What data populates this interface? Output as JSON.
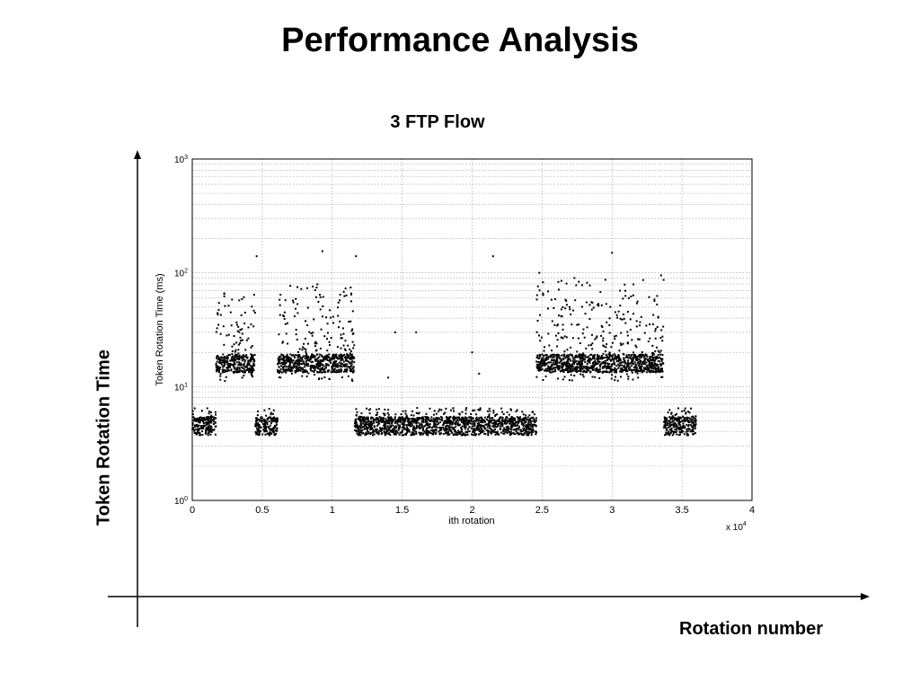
{
  "slide": {
    "title": "Performance Analysis",
    "side_axis_label": "Token Rotation Time",
    "bottom_axis_label": "Rotation number"
  },
  "chart_data": {
    "type": "scatter",
    "title": "3 FTP Flow",
    "xlabel": "ith rotation",
    "ylabel": "Token Rotation Time (ms)",
    "x_multiplier_label": "x 10",
    "x_multiplier_exponent": "4",
    "xlim": [
      0,
      4
    ],
    "ylim": [
      1,
      1000
    ],
    "y_scale": "log",
    "grid": true,
    "x_ticks": [
      "0",
      "0.5",
      "1",
      "1.5",
      "2",
      "2.5",
      "3",
      "3.5",
      "4"
    ],
    "y_ticks": [
      {
        "base": "10",
        "exp": "0",
        "value": 1
      },
      {
        "base": "10",
        "exp": "1",
        "value": 10
      },
      {
        "base": "10",
        "exp": "2",
        "value": 100
      },
      {
        "base": "10",
        "exp": "3",
        "value": 1000
      }
    ],
    "marker_color": "#000000",
    "segments": [
      {
        "x_start": 0.0,
        "x_end": 0.17,
        "base_ms": 4.5,
        "high_ms": 6.5
      },
      {
        "x_start": 0.17,
        "x_end": 0.45,
        "base_ms": 16.0,
        "high_ms": 70
      },
      {
        "x_start": 0.45,
        "x_end": 0.61,
        "base_ms": 4.5,
        "high_ms": 6.5
      },
      {
        "x_start": 0.61,
        "x_end": 1.16,
        "base_ms": 16.0,
        "high_ms": 80
      },
      {
        "x_start": 1.16,
        "x_end": 2.46,
        "base_ms": 4.5,
        "high_ms": 6.5
      },
      {
        "x_start": 2.46,
        "x_end": 3.37,
        "base_ms": 16.0,
        "high_ms": 90
      },
      {
        "x_start": 3.37,
        "x_end": 3.6,
        "base_ms": 4.5,
        "high_ms": 6.5
      }
    ],
    "outliers": [
      {
        "x": 0.46,
        "y": 140
      },
      {
        "x": 0.93,
        "y": 155
      },
      {
        "x": 1.17,
        "y": 140
      },
      {
        "x": 2.15,
        "y": 140
      },
      {
        "x": 3.0,
        "y": 150
      },
      {
        "x": 3.35,
        "y": 95
      },
      {
        "x": 1.45,
        "y": 30
      },
      {
        "x": 1.6,
        "y": 30
      },
      {
        "x": 2.0,
        "y": 20
      },
      {
        "x": 2.05,
        "y": 13
      },
      {
        "x": 1.4,
        "y": 12
      },
      {
        "x": 2.48,
        "y": 100
      }
    ]
  }
}
